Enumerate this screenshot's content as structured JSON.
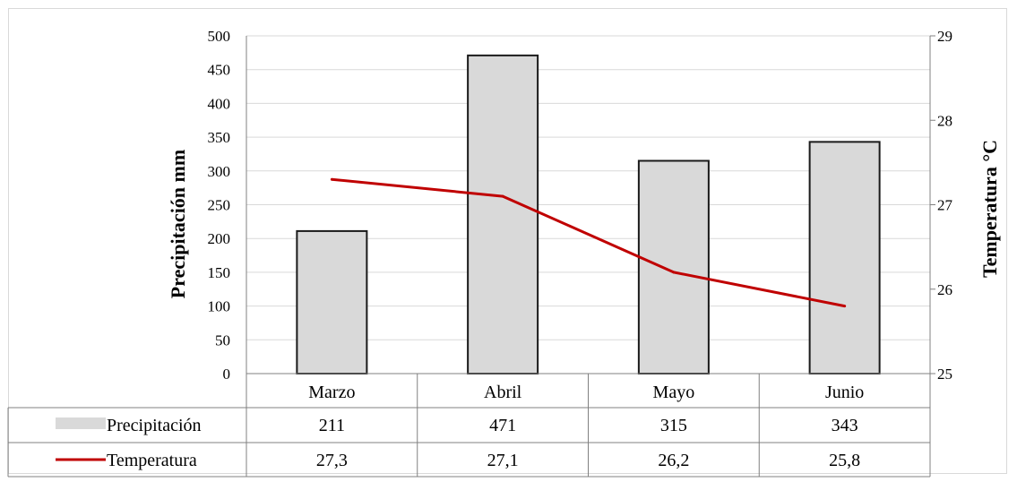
{
  "chart_data": {
    "type": "bar",
    "categories": [
      "Marzo",
      "Abril",
      "Mayo",
      "Junio"
    ],
    "series": [
      {
        "name": "Precipitación",
        "type": "bar",
        "axis": "left",
        "values": [
          211,
          471,
          315,
          343
        ],
        "display": [
          "211",
          "471",
          "315",
          "343"
        ],
        "color": "#d9d9d9",
        "stroke": "#1a1a1a"
      },
      {
        "name": "Temperatura",
        "type": "line",
        "axis": "right",
        "values": [
          27.3,
          27.1,
          26.2,
          25.8
        ],
        "display": [
          "27,3",
          "27,1",
          "26,2",
          "25,8"
        ],
        "color": "#c00000"
      }
    ],
    "ylabel": "Precipitación mm",
    "y2label": "Temperatura °C",
    "ylim": [
      0,
      500
    ],
    "y2lim": [
      25,
      29
    ],
    "yticks": [
      0,
      50,
      100,
      150,
      200,
      250,
      300,
      350,
      400,
      450,
      500
    ],
    "y2ticks": [
      25,
      26,
      27,
      28,
      29
    ],
    "grid": true,
    "legend": "data table below chart"
  }
}
